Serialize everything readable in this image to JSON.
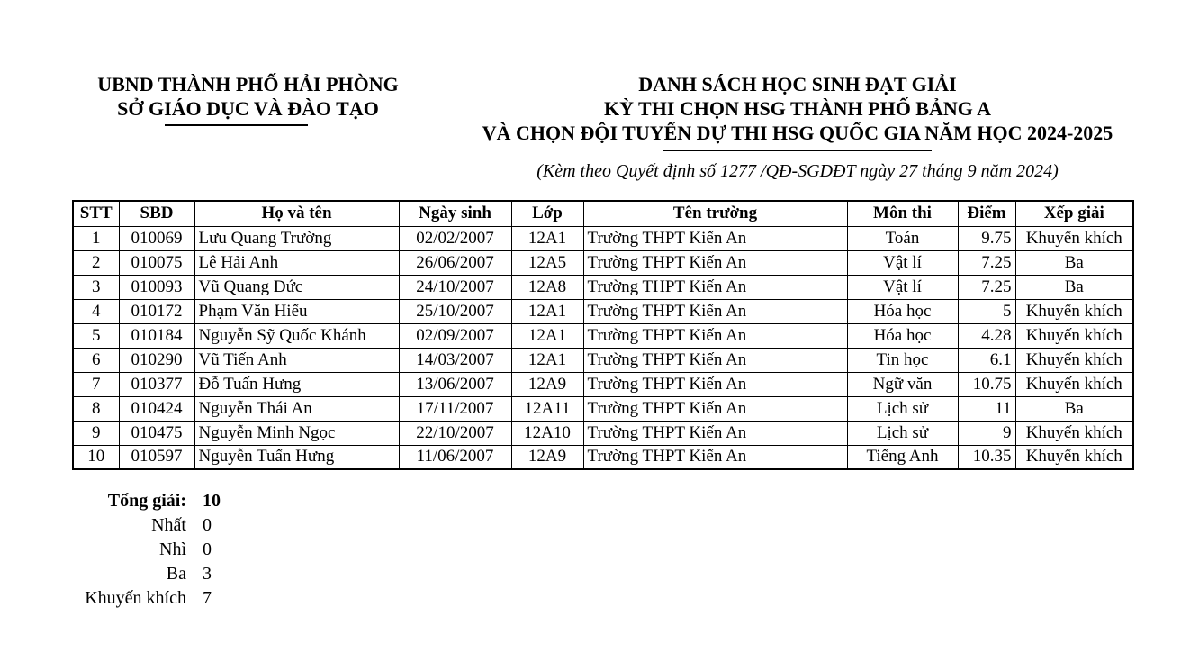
{
  "header": {
    "left": {
      "line1": "UBND THÀNH PHỐ HẢI PHÒNG",
      "line2": "SỞ GIÁO DỤC VÀ ĐÀO TẠO"
    },
    "right": {
      "line1": "DANH SÁCH HỌC SINH ĐẠT GIẢI",
      "line2": "KỲ THI CHỌN HSG THÀNH PHỐ BẢNG A",
      "line3": "VÀ CHỌN ĐỘI TUYỂN DỰ THI HSG QUỐC GIA NĂM HỌC 2024-2025"
    },
    "subtitle": "(Kèm theo Quyết định số 1277 /QĐ-SGDĐT ngày 27 tháng 9 năm 2024)"
  },
  "table": {
    "columns": [
      "STT",
      "SBD",
      "Họ và tên",
      "Ngày sinh",
      "Lớp",
      "Tên trường",
      "Môn thi",
      "Điểm",
      "Xếp giải"
    ],
    "column_alignments": [
      "center",
      "center",
      "left",
      "center",
      "center",
      "left",
      "center",
      "right",
      "center"
    ],
    "rows": [
      [
        "1",
        "010069",
        "Lưu Quang Trường",
        "02/02/2007",
        "12A1",
        "Trường THPT Kiến An",
        "Toán",
        "9.75",
        "Khuyến khích"
      ],
      [
        "2",
        "010075",
        "Lê Hải Anh",
        "26/06/2007",
        "12A5",
        "Trường THPT Kiến An",
        "Vật lí",
        "7.25",
        "Ba"
      ],
      [
        "3",
        "010093",
        "Vũ Quang Đức",
        "24/10/2007",
        "12A8",
        "Trường THPT Kiến An",
        "Vật lí",
        "7.25",
        "Ba"
      ],
      [
        "4",
        "010172",
        "Phạm Văn Hiếu",
        "25/10/2007",
        "12A1",
        "Trường THPT Kiến An",
        "Hóa học",
        "5",
        "Khuyến khích"
      ],
      [
        "5",
        "010184",
        "Nguyễn Sỹ Quốc Khánh",
        "02/09/2007",
        "12A1",
        "Trường THPT Kiến An",
        "Hóa học",
        "4.28",
        "Khuyến khích"
      ],
      [
        "6",
        "010290",
        "Vũ Tiến Anh",
        "14/03/2007",
        "12A1",
        "Trường THPT Kiến An",
        "Tin học",
        "6.1",
        "Khuyến khích"
      ],
      [
        "7",
        "010377",
        "Đỗ Tuấn Hưng",
        "13/06/2007",
        "12A9",
        "Trường THPT Kiến An",
        "Ngữ văn",
        "10.75",
        "Khuyến khích"
      ],
      [
        "8",
        "010424",
        "Nguyễn Thái An",
        "17/11/2007",
        "12A11",
        "Trường THPT Kiến An",
        "Lịch sử",
        "11",
        "Ba"
      ],
      [
        "9",
        "010475",
        "Nguyễn Minh Ngọc",
        "22/10/2007",
        "12A10",
        "Trường THPT Kiến An",
        "Lịch sử",
        "9",
        "Khuyến khích"
      ],
      [
        "10",
        "010597",
        "Nguyễn Tuấn Hưng",
        "11/06/2007",
        "12A9",
        "Trường THPT Kiến An",
        "Tiếng Anh",
        "10.35",
        "Khuyến khích"
      ]
    ]
  },
  "summary": {
    "total_label": "Tổng giải:",
    "total_value": "10",
    "items": [
      {
        "label": "Nhất",
        "value": "0"
      },
      {
        "label": "Nhì",
        "value": "0"
      },
      {
        "label": "Ba",
        "value": "3"
      },
      {
        "label": "Khuyến khích",
        "value": "7"
      }
    ]
  },
  "colors": {
    "text": "#000000",
    "background": "#ffffff",
    "border": "#000000"
  }
}
